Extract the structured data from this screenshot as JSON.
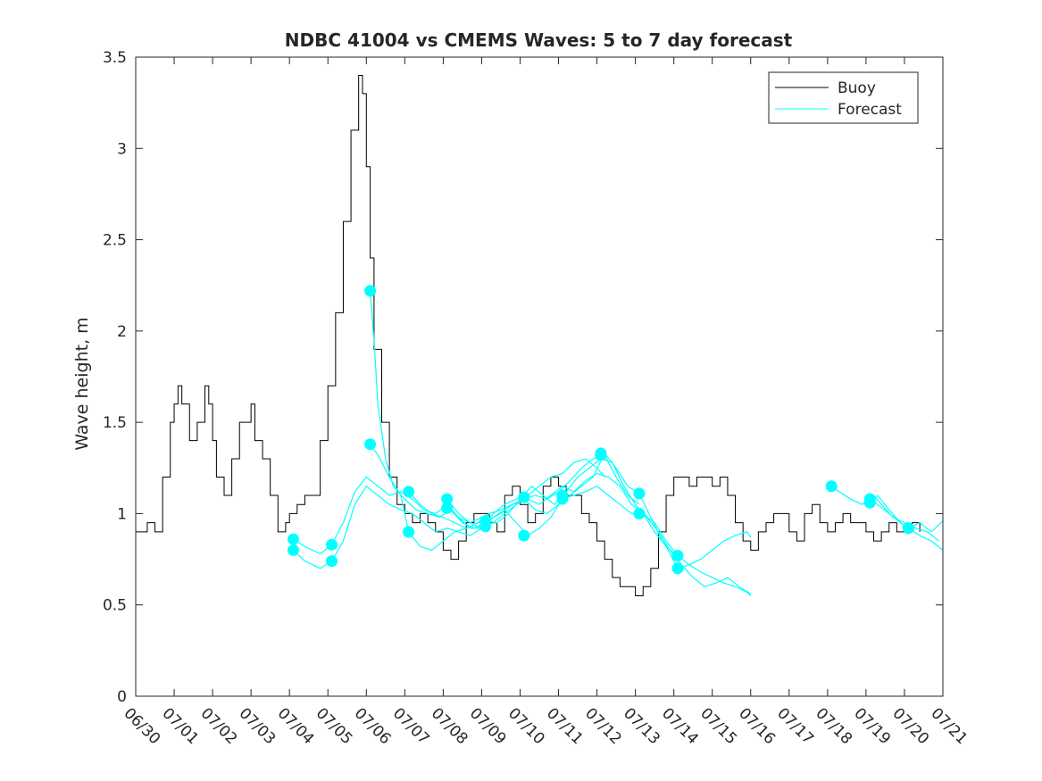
{
  "chart_data": {
    "type": "line",
    "title": "NDBC 41004 vs CMEMS Waves: 5 to 7 day forecast",
    "xlabel": "",
    "ylabel": "Wave height, m",
    "xlim": [
      "06/30",
      "07/21"
    ],
    "ylim": [
      0,
      3.5
    ],
    "x_tick_labels": [
      "06/30",
      "07/01",
      "07/02",
      "07/03",
      "07/04",
      "07/05",
      "07/06",
      "07/07",
      "07/08",
      "07/09",
      "07/10",
      "07/11",
      "07/12",
      "07/13",
      "07/14",
      "07/15",
      "07/16",
      "07/17",
      "07/18",
      "07/19",
      "07/20",
      "07/21"
    ],
    "y_tick_labels": [
      "0",
      "0.5",
      "1",
      "1.5",
      "2",
      "2.5",
      "3",
      "3.5"
    ],
    "y_ticks": [
      0,
      0.5,
      1,
      1.5,
      2,
      2.5,
      3,
      3.5
    ],
    "grid": false,
    "legend": {
      "position": "top-right",
      "entries": [
        "Buoy",
        "Forecast"
      ]
    },
    "colors": {
      "buoy": "#000000",
      "forecast": "#00ffff",
      "axes": "#262626"
    },
    "series": [
      {
        "name": "Buoy",
        "x": [
          0,
          0.3,
          0.5,
          0.7,
          0.9,
          1.0,
          1.1,
          1.2,
          1.4,
          1.6,
          1.8,
          1.9,
          2.0,
          2.1,
          2.3,
          2.5,
          2.7,
          2.9,
          3.0,
          3.1,
          3.3,
          3.5,
          3.7,
          3.9,
          4.0,
          4.2,
          4.4,
          4.6,
          4.8,
          5.0,
          5.2,
          5.4,
          5.6,
          5.8,
          5.9,
          6.0,
          6.1,
          6.2,
          6.4,
          6.6,
          6.8,
          7.0,
          7.2,
          7.4,
          7.6,
          7.8,
          8.0,
          8.2,
          8.4,
          8.6,
          8.8,
          9.0,
          9.2,
          9.4,
          9.6,
          9.8,
          10.0,
          10.2,
          10.4,
          10.6,
          10.8,
          11.0,
          11.2,
          11.4,
          11.6,
          11.8,
          12.0,
          12.2,
          12.4,
          12.6,
          12.8,
          13.0,
          13.2,
          13.4,
          13.6,
          13.8,
          14.0,
          14.2,
          14.4,
          14.6,
          14.8,
          15.0,
          15.2,
          15.4,
          15.6,
          15.8,
          16.0,
          16.2,
          16.4,
          16.6,
          16.8,
          17.0,
          17.2,
          17.4,
          17.6,
          17.8,
          18.0,
          18.2,
          18.4,
          18.6,
          18.8,
          19.0,
          19.2,
          19.4,
          19.6,
          19.8,
          20.0,
          20.2,
          20.4
        ],
        "y": [
          0.9,
          0.95,
          0.9,
          1.2,
          1.5,
          1.6,
          1.7,
          1.6,
          1.4,
          1.5,
          1.7,
          1.6,
          1.4,
          1.2,
          1.1,
          1.3,
          1.5,
          1.5,
          1.6,
          1.4,
          1.3,
          1.1,
          0.9,
          0.95,
          1.0,
          1.05,
          1.1,
          1.1,
          1.4,
          1.7,
          2.1,
          2.6,
          3.1,
          3.4,
          3.3,
          2.9,
          2.4,
          1.9,
          1.5,
          1.2,
          1.05,
          1.0,
          0.95,
          1.0,
          0.95,
          0.9,
          0.8,
          0.75,
          0.85,
          0.95,
          1.0,
          1.0,
          0.95,
          0.9,
          1.1,
          1.15,
          1.05,
          0.95,
          1.0,
          1.15,
          1.2,
          1.15,
          1.1,
          1.1,
          1.0,
          0.95,
          0.85,
          0.75,
          0.65,
          0.6,
          0.6,
          0.55,
          0.6,
          0.7,
          0.9,
          1.1,
          1.2,
          1.2,
          1.15,
          1.2,
          1.2,
          1.15,
          1.2,
          1.1,
          0.95,
          0.85,
          0.8,
          0.9,
          0.95,
          1.0,
          1.0,
          0.9,
          0.85,
          1.0,
          1.05,
          0.95,
          0.9,
          0.95,
          1.0,
          0.95,
          0.95,
          0.9,
          0.85,
          0.9,
          0.95,
          0.9,
          0.9,
          0.95,
          0.9
        ]
      },
      {
        "name": "Forecast",
        "segments": [
          {
            "x": [
              4.1,
              4.4,
              4.8,
              5.1,
              5.4,
              5.7,
              6.0,
              6.3,
              6.6,
              6.9,
              7.2,
              7.5,
              7.8,
              8.1,
              8.4,
              8.7,
              9.0,
              9.2
            ],
            "y": [
              0.86,
              0.82,
              0.78,
              0.83,
              0.95,
              1.12,
              1.2,
              1.15,
              1.1,
              1.12,
              1.08,
              1.02,
              1.0,
              1.05,
              0.98,
              0.95,
              0.98,
              1.0
            ]
          },
          {
            "x": [
              4.1,
              4.4,
              4.8,
              5.1,
              5.4,
              5.7,
              6.0,
              6.3,
              6.6,
              6.9,
              7.2,
              7.5,
              7.8,
              8.1,
              8.4,
              8.7,
              9.0,
              9.2
            ],
            "y": [
              0.8,
              0.74,
              0.7,
              0.74,
              0.85,
              1.05,
              1.15,
              1.1,
              1.05,
              1.02,
              1.0,
              0.95,
              0.9,
              0.92,
              0.9,
              0.88,
              0.92,
              0.95
            ]
          },
          {
            "x": [
              6.1,
              6.2,
              6.3,
              6.5,
              6.7,
              7.0,
              7.3,
              7.6,
              7.9,
              8.2,
              8.5,
              8.8,
              9.1,
              9.3,
              9.6,
              9.9,
              10.2,
              10.5,
              10.8,
              11.1,
              11.4,
              11.7,
              12.0,
              12.2
            ],
            "y": [
              2.22,
              1.95,
              1.6,
              1.3,
              1.15,
              1.08,
              1.02,
              1.0,
              0.98,
              1.02,
              0.95,
              0.92,
              0.95,
              1.0,
              1.05,
              1.08,
              1.1,
              1.15,
              1.2,
              1.22,
              1.28,
              1.3,
              1.25,
              1.2
            ]
          },
          {
            "x": [
              6.1,
              6.3,
              6.6,
              6.9,
              7.1,
              7.4,
              7.7,
              8.0,
              8.3,
              8.6,
              8.9,
              9.2,
              9.5,
              9.8,
              10.1,
              10.4,
              10.7,
              11.0,
              11.3,
              11.6,
              11.9,
              12.2,
              12.5,
              12.8,
              13.1
            ],
            "y": [
              1.38,
              1.32,
              1.2,
              1.1,
              0.9,
              0.82,
              0.8,
              0.85,
              0.9,
              0.92,
              0.95,
              1.0,
              1.02,
              1.05,
              1.08,
              1.1,
              1.08,
              1.12,
              1.18,
              1.25,
              1.3,
              1.32,
              1.2,
              1.1,
              1.05
            ]
          },
          {
            "x": [
              7.1,
              7.4,
              7.7,
              8.0,
              8.3,
              8.6,
              8.9,
              9.2,
              9.5,
              9.8,
              10.1,
              10.4,
              10.7,
              11.0,
              11.3,
              11.6,
              11.9,
              12.2,
              12.5,
              12.8,
              13.1,
              13.4,
              13.7,
              14.0,
              14.1
            ],
            "y": [
              1.12,
              1.05,
              1.0,
              0.98,
              0.95,
              0.92,
              0.95,
              0.97,
              1.0,
              1.05,
              1.08,
              1.02,
              1.0,
              1.05,
              1.1,
              1.15,
              1.2,
              1.33,
              1.25,
              1.15,
              1.11,
              0.98,
              0.85,
              0.78,
              0.77
            ]
          },
          {
            "x": [
              8.1,
              8.4,
              8.7,
              9.0,
              9.3,
              9.6,
              9.9,
              10.2,
              10.5,
              10.8,
              11.1,
              11.4,
              11.7,
              12.0,
              12.3,
              12.6,
              12.9,
              13.2,
              13.5,
              13.8,
              14.1,
              14.4,
              14.7,
              15.0,
              15.3,
              15.6,
              15.9,
              16.0
            ],
            "y": [
              1.08,
              1.0,
              0.95,
              0.92,
              0.95,
              1.0,
              1.05,
              1.08,
              1.05,
              1.1,
              1.15,
              1.12,
              1.18,
              1.22,
              1.2,
              1.15,
              1.05,
              1.0,
              0.9,
              0.82,
              0.7,
              0.72,
              0.75,
              0.8,
              0.85,
              0.88,
              0.9,
              0.87
            ]
          },
          {
            "x": [
              8.1,
              8.4,
              8.7,
              9.0,
              9.3,
              9.6,
              9.9,
              10.2,
              10.5,
              10.8,
              11.1,
              11.4,
              11.7,
              12.0,
              12.3,
              12.6,
              12.9,
              13.2,
              13.5,
              13.8,
              14.1,
              14.4,
              14.7,
              15.0,
              15.3,
              15.6,
              15.9,
              16.0
            ],
            "y": [
              1.03,
              0.98,
              0.92,
              0.92,
              0.98,
              1.02,
              0.95,
              0.88,
              0.92,
              0.98,
              1.08,
              1.1,
              1.12,
              1.15,
              1.1,
              1.05,
              1.0,
              1.0,
              0.95,
              0.85,
              0.77,
              0.72,
              0.68,
              0.65,
              0.62,
              0.6,
              0.57,
              0.55
            ]
          },
          {
            "x": [
              9.1,
              9.4,
              9.7,
              10.0,
              10.3,
              10.6,
              10.9,
              11.2,
              11.5,
              11.8,
              12.1,
              12.4,
              12.7,
              13.0,
              13.3,
              13.6,
              13.9,
              14.2,
              14.5,
              14.8,
              15.1,
              15.4,
              15.7,
              16.0
            ],
            "y": [
              0.96,
              0.95,
              1.0,
              1.08,
              1.15,
              1.1,
              1.05,
              1.12,
              1.2,
              1.25,
              1.3,
              1.28,
              1.15,
              1.05,
              0.98,
              0.9,
              0.8,
              0.72,
              0.65,
              0.6,
              0.62,
              0.65,
              0.6,
              0.56
            ]
          },
          {
            "x": [
              18.1,
              18.3,
              18.6,
              18.9,
              19.2,
              19.4,
              19.7,
              20.0,
              20.3,
              20.6,
              20.9
            ],
            "y": [
              1.15,
              1.12,
              1.08,
              1.05,
              1.1,
              1.05,
              0.98,
              0.95,
              0.92,
              0.9,
              0.85
            ]
          },
          {
            "x": [
              19.1,
              19.3,
              19.6,
              19.9,
              20.1,
              20.4,
              20.7,
              21.0
            ],
            "y": [
              1.08,
              1.05,
              1.0,
              0.95,
              0.92,
              0.95,
              0.9,
              0.96
            ]
          },
          {
            "x": [
              19.1,
              19.3,
              19.6,
              19.9,
              20.1,
              20.4,
              20.7,
              21.0
            ],
            "y": [
              1.06,
              1.1,
              1.02,
              0.95,
              0.92,
              0.88,
              0.85,
              0.8
            ]
          }
        ],
        "markers": [
          {
            "x": 4.1,
            "y": 0.86
          },
          {
            "x": 4.1,
            "y": 0.8
          },
          {
            "x": 5.1,
            "y": 0.83
          },
          {
            "x": 5.1,
            "y": 0.74
          },
          {
            "x": 6.1,
            "y": 2.22
          },
          {
            "x": 6.1,
            "y": 1.38
          },
          {
            "x": 7.1,
            "y": 1.12
          },
          {
            "x": 7.1,
            "y": 0.9
          },
          {
            "x": 8.1,
            "y": 1.08
          },
          {
            "x": 8.1,
            "y": 1.03
          },
          {
            "x": 9.1,
            "y": 0.96
          },
          {
            "x": 9.1,
            "y": 0.93
          },
          {
            "x": 10.1,
            "y": 1.09
          },
          {
            "x": 10.1,
            "y": 0.88
          },
          {
            "x": 11.1,
            "y": 1.1
          },
          {
            "x": 11.1,
            "y": 1.08
          },
          {
            "x": 12.1,
            "y": 1.33
          },
          {
            "x": 12.1,
            "y": 1.32
          },
          {
            "x": 13.1,
            "y": 1.11
          },
          {
            "x": 13.1,
            "y": 1.0
          },
          {
            "x": 14.1,
            "y": 0.77
          },
          {
            "x": 14.1,
            "y": 0.7
          },
          {
            "x": 18.1,
            "y": 1.15
          },
          {
            "x": 19.1,
            "y": 1.08
          },
          {
            "x": 19.1,
            "y": 1.06
          },
          {
            "x": 20.1,
            "y": 0.92
          }
        ]
      }
    ]
  }
}
